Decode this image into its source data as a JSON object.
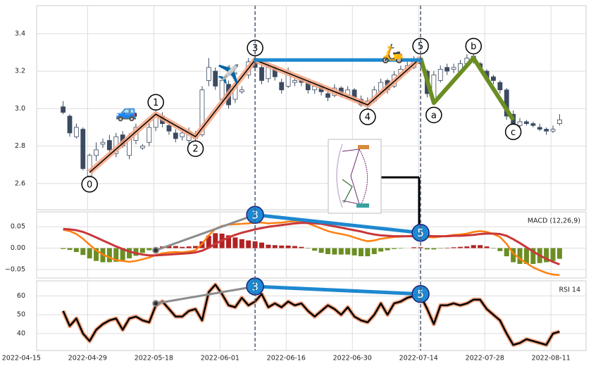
{
  "chart_data": [
    {
      "type": "candlestick",
      "xlim": [
        -4,
        79
      ],
      "ylim": [
        2.46,
        3.55
      ],
      "yticks": [
        2.6,
        2.8,
        {
          "value": 3,
          "label": "3.0"
        },
        3.2,
        3.4
      ],
      "grid": true,
      "up_color": "#ffffff",
      "down_color": "#3b4a60",
      "open": [
        3.01,
        2.96,
        2.85,
        2.89,
        2.64,
        2.75,
        2.81,
        2.83,
        2.76,
        2.86,
        2.75,
        2.83,
        2.79,
        2.82,
        2.9,
        2.96,
        2.91,
        2.87,
        2.85,
        2.83,
        2.84,
        2.86,
        3.15,
        3.2,
        3.05,
        3.13,
        3.05,
        3.09,
        3.18,
        3.25,
        3.22,
        3.16,
        3.22,
        3.14,
        3.12,
        3.14,
        3.15,
        3.14,
        3.1,
        3.12,
        3.08,
        3.07,
        3.11,
        3.07,
        3.1,
        3.05,
        3.02,
        3.04,
        3.09,
        3.15,
        3.12,
        3.18,
        3.2,
        3.22,
        3.26,
        3.2,
        3.05,
        3.15,
        3.22,
        3.21,
        3.2,
        3.24,
        3.28,
        3.24,
        3.2,
        3.17,
        3.14,
        3.1,
        2.97,
        2.91,
        2.93,
        2.92,
        2.9,
        2.89,
        2.88,
        2.92
      ],
      "high": [
        3.04,
        2.97,
        2.92,
        2.9,
        2.76,
        2.82,
        2.84,
        2.86,
        2.87,
        2.88,
        2.87,
        2.92,
        2.81,
        2.92,
        2.99,
        2.98,
        2.93,
        2.89,
        2.9,
        2.9,
        2.88,
        3.12,
        3.27,
        3.22,
        3.17,
        3.15,
        3.14,
        3.12,
        3.27,
        3.28,
        3.24,
        3.24,
        3.23,
        3.16,
        3.22,
        3.16,
        3.17,
        3.15,
        3.14,
        3.13,
        3.1,
        3.13,
        3.12,
        3.12,
        3.11,
        3.07,
        3.06,
        3.12,
        3.16,
        3.16,
        3.2,
        3.23,
        3.25,
        3.28,
        3.29,
        3.21,
        3.2,
        3.23,
        3.24,
        3.24,
        3.26,
        3.29,
        3.3,
        3.25,
        3.21,
        3.18,
        3.15,
        3.11,
        2.99,
        2.95,
        2.94,
        2.93,
        2.92,
        2.9,
        2.91,
        2.97
      ],
      "low": [
        2.97,
        2.85,
        2.84,
        2.67,
        2.61,
        2.72,
        2.79,
        2.76,
        2.74,
        2.79,
        2.73,
        2.81,
        2.78,
        2.8,
        2.88,
        2.9,
        2.86,
        2.82,
        2.83,
        2.81,
        2.83,
        2.85,
        3.12,
        3.1,
        3.03,
        3.0,
        3.03,
        3.08,
        3.16,
        3.2,
        3.13,
        3.14,
        3.15,
        3.08,
        3.11,
        3.12,
        3.12,
        3.08,
        3.08,
        3.07,
        3.04,
        3.06,
        3.06,
        3.05,
        3.04,
        3.01,
        3.0,
        3.03,
        3.08,
        3.08,
        3.11,
        3.16,
        3.19,
        3.21,
        3.22,
        3.06,
        3.02,
        3.14,
        3.18,
        3.19,
        3.19,
        3.23,
        3.24,
        3.2,
        3.14,
        3.13,
        3.08,
        2.94,
        2.89,
        2.89,
        2.91,
        2.9,
        2.88,
        2.86,
        2.87,
        2.91
      ],
      "close": [
        2.98,
        2.87,
        2.9,
        2.68,
        2.75,
        2.78,
        2.82,
        2.78,
        2.85,
        2.8,
        2.84,
        2.9,
        2.8,
        2.9,
        2.97,
        2.92,
        2.88,
        2.84,
        2.87,
        2.88,
        2.86,
        3.1,
        3.22,
        3.12,
        3.15,
        3.02,
        3.12,
        3.1,
        3.25,
        3.22,
        3.15,
        3.22,
        3.17,
        3.1,
        3.2,
        3.15,
        3.14,
        3.1,
        3.12,
        3.09,
        3.06,
        3.11,
        3.08,
        3.1,
        3.06,
        3.02,
        3.04,
        3.1,
        3.14,
        3.1,
        3.18,
        3.21,
        3.23,
        3.26,
        3.24,
        3.08,
        3.18,
        3.21,
        3.2,
        3.22,
        3.24,
        3.27,
        3.26,
        3.22,
        3.16,
        3.15,
        3.1,
        2.96,
        2.91,
        2.93,
        2.92,
        2.91,
        2.89,
        2.88,
        2.89,
        2.94
      ],
      "impulse": {
        "color": "#f4a582",
        "points": [
          {
            "label": "0",
            "x": 4,
            "y": 2.66
          },
          {
            "label": "1",
            "x": 14,
            "y": 2.97
          },
          {
            "label": "2",
            "x": 20,
            "y": 2.85
          },
          {
            "label": "3",
            "x": 29,
            "y": 3.26
          },
          {
            "label": "4",
            "x": 46,
            "y": 3.02
          },
          {
            "label": "5",
            "x": 54,
            "y": 3.27
          }
        ]
      },
      "correction": {
        "color": "#6b8e23",
        "points": [
          {
            "label": "a",
            "x": 56,
            "y": 3.03
          },
          {
            "label": "b",
            "x": 62,
            "y": 3.27
          },
          {
            "label": "c",
            "x": 68,
            "y": 2.94
          }
        ]
      },
      "divergence": {
        "color": "#1e88d0",
        "points": [
          {
            "x": 29,
            "y": 3.26
          },
          {
            "x": 54,
            "y": 3.26
          }
        ]
      },
      "icons": [
        {
          "text": "🚙",
          "x": 9.6,
          "y": 2.98
        },
        {
          "text": "✈️",
          "x": 25,
          "y": 3.18
        },
        {
          "text": "🛵",
          "x": 49.8,
          "y": 3.29
        }
      ],
      "vlines": [
        29,
        54
      ]
    },
    {
      "type": "macd",
      "legend": "MACD (12,26,9)",
      "xlim": [
        -4,
        79
      ],
      "ylim": [
        -0.07,
        0.085
      ],
      "yticks": [
        {
          "value": -0.05,
          "label": "−0.05"
        },
        {
          "value": 0,
          "label": "0.00"
        },
        0.05
      ],
      "grid": true,
      "macd": {
        "color": "#ff7f0e",
        "values": [
          0.043,
          0.04,
          0.033,
          0.022,
          0.008,
          -0.005,
          -0.015,
          -0.022,
          -0.028,
          -0.03,
          -0.032,
          -0.03,
          -0.026,
          -0.022,
          -0.016,
          -0.012,
          -0.01,
          -0.009,
          -0.01,
          -0.008,
          -0.005,
          0.01,
          0.03,
          0.045,
          0.052,
          0.055,
          0.056,
          0.057,
          0.058,
          0.06,
          0.06,
          0.058,
          0.059,
          0.06,
          0.062,
          0.063,
          0.062,
          0.058,
          0.052,
          0.046,
          0.04,
          0.036,
          0.033,
          0.03,
          0.025,
          0.02,
          0.016,
          0.018,
          0.022,
          0.024,
          0.026,
          0.027,
          0.028,
          0.03,
          0.031,
          0.026,
          0.025,
          0.027,
          0.029,
          0.031,
          0.032,
          0.034,
          0.038,
          0.04,
          0.038,
          0.033,
          0.026,
          0.01,
          -0.012,
          -0.025,
          -0.035,
          -0.045,
          -0.052,
          -0.058,
          -0.062,
          -0.063
        ]
      },
      "signal": {
        "color": "#c8373a",
        "values": [
          0.045,
          0.044,
          0.042,
          0.038,
          0.032,
          0.025,
          0.018,
          0.011,
          0.004,
          -0.002,
          -0.008,
          -0.012,
          -0.015,
          -0.017,
          -0.017,
          -0.016,
          -0.015,
          -0.014,
          -0.013,
          -0.012,
          -0.01,
          -0.006,
          0.001,
          0.01,
          0.018,
          0.025,
          0.031,
          0.036,
          0.04,
          0.044,
          0.047,
          0.05,
          0.052,
          0.054,
          0.056,
          0.058,
          0.059,
          0.059,
          0.058,
          0.057,
          0.054,
          0.051,
          0.048,
          0.045,
          0.042,
          0.039,
          0.035,
          0.032,
          0.03,
          0.029,
          0.028,
          0.028,
          0.028,
          0.028,
          0.029,
          0.029,
          0.028,
          0.028,
          0.028,
          0.029,
          0.029,
          0.03,
          0.031,
          0.033,
          0.034,
          0.034,
          0.033,
          0.029,
          0.021,
          0.012,
          0.002,
          -0.008,
          -0.017,
          -0.025,
          -0.032,
          -0.038
        ]
      },
      "histogram": {
        "pos_color": "#b22222",
        "neg_color": "#6b8e23",
        "values": [
          -0.002,
          -0.004,
          -0.009,
          -0.016,
          -0.024,
          -0.03,
          -0.033,
          -0.033,
          -0.032,
          -0.028,
          -0.024,
          -0.018,
          -0.011,
          -0.005,
          0.001,
          0.004,
          0.005,
          0.005,
          0.003,
          0.004,
          0.005,
          0.016,
          0.029,
          0.035,
          0.034,
          0.03,
          0.025,
          0.021,
          0.018,
          0.016,
          0.013,
          0.008,
          0.007,
          0.006,
          0.006,
          0.005,
          0.003,
          -0.001,
          -0.006,
          -0.011,
          -0.014,
          -0.015,
          -0.015,
          -0.015,
          -0.017,
          -0.019,
          -0.019,
          -0.014,
          -0.008,
          -0.005,
          -0.002,
          -0.001,
          0,
          0.002,
          0.002,
          -0.003,
          -0.003,
          -0.001,
          0.001,
          0.002,
          0.003,
          0.004,
          0.007,
          0.007,
          0.004,
          -0.001,
          -0.007,
          -0.019,
          -0.033,
          -0.037,
          -0.037,
          -0.037,
          -0.035,
          -0.033,
          -0.03,
          -0.025
        ]
      },
      "divergence": {
        "color": "#1e88d0",
        "points": [
          {
            "label": "3",
            "x": 29,
            "y": 0.078
          },
          {
            "label": "5",
            "x": 54,
            "y": 0.036
          }
        ]
      },
      "trend": {
        "color": "#8c8c8c",
        "points": [
          {
            "x": 14,
            "y": -0.005
          },
          {
            "x": 29,
            "y": 0.078
          }
        ]
      }
    },
    {
      "type": "line",
      "legend": "RSI 14",
      "xlim": [
        -4,
        79
      ],
      "ylim": [
        31,
        68
      ],
      "yticks": [
        40,
        50,
        60
      ],
      "grid": true,
      "xticks": [
        {
          "value": -6.3,
          "label": "2022-04-15"
        },
        {
          "value": 3.7,
          "label": "2022-04-29"
        },
        {
          "value": 13.7,
          "label": "2022-05-18"
        },
        {
          "value": 23.7,
          "label": "2022-06-01"
        },
        {
          "value": 33.7,
          "label": "2022-06-16"
        },
        {
          "value": 43.7,
          "label": "2022-06-30"
        },
        {
          "value": 53.7,
          "label": "2022-07-14"
        },
        {
          "value": 63.7,
          "label": "2022-07-28"
        },
        {
          "value": 73.7,
          "label": "2022-08-11"
        }
      ],
      "color": "#000000",
      "halo_color": "#f4a582",
      "values": [
        52,
        44,
        48,
        40,
        36,
        42,
        45,
        47,
        48,
        42,
        48,
        49,
        47,
        46,
        55,
        57,
        53,
        49,
        49,
        52,
        53,
        47,
        62,
        66,
        61,
        55,
        54,
        59,
        55,
        57,
        61,
        54,
        56,
        54,
        57,
        55,
        56,
        52,
        49,
        52,
        55,
        53,
        50,
        54,
        49,
        47,
        46,
        50,
        56,
        50,
        56,
        57,
        59,
        60,
        60,
        53,
        45,
        55,
        55,
        56,
        55,
        56,
        58,
        58,
        53,
        50,
        47,
        40,
        34,
        35,
        37,
        36,
        35,
        34,
        40,
        41
      ],
      "divergence": {
        "color": "#1e88d0",
        "points": [
          {
            "label": "3",
            "x": 29,
            "y": 65
          },
          {
            "label": "5",
            "x": 54,
            "y": 61
          }
        ]
      },
      "trend": {
        "color": "#8c8c8c",
        "points": [
          {
            "x": 14,
            "y": 56
          },
          {
            "x": 29,
            "y": 65
          }
        ]
      }
    }
  ]
}
